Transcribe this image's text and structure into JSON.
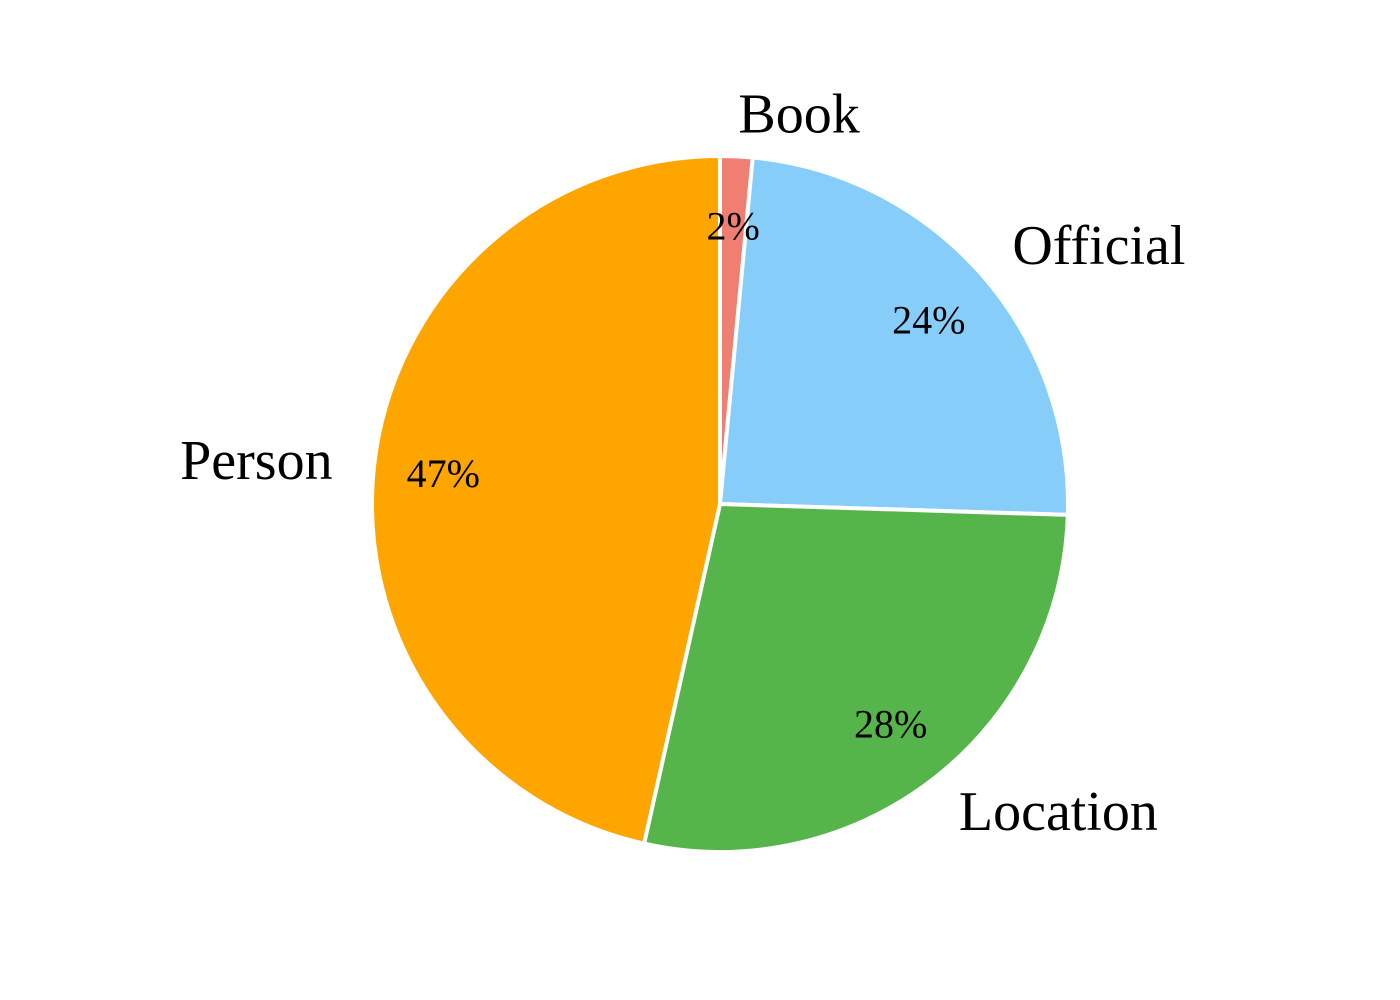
{
  "chart_data": {
    "type": "pie",
    "title": "",
    "categories": [
      "Book",
      "Official",
      "Location",
      "Person"
    ],
    "values": [
      1.5,
      24,
      28,
      46.5
    ],
    "percent_labels": [
      "2%",
      "24%",
      "28%",
      "47%"
    ],
    "colors": [
      "#F07F73",
      "#87CDFA",
      "#55B54A",
      "#FFA500"
    ],
    "start_angle": "12 o'clock",
    "direction": "clockwise",
    "slice_edge_color": "#ffffff",
    "legend": "none"
  }
}
